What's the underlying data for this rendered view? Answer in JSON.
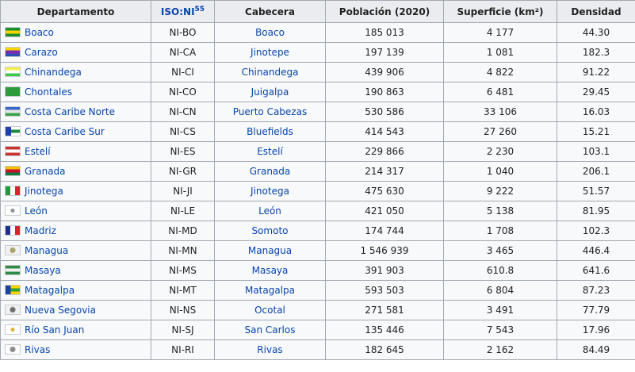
{
  "headers": {
    "departamento": "Departamento",
    "iso": "ISO:NI",
    "iso_ref": "55",
    "cabecera": "Cabecera",
    "poblacion": "Población (2020)",
    "superficie": "Superficie (km²)",
    "densidad": "Densidad"
  },
  "rows": [
    {
      "flag": "boaco-flag-icon",
      "name": "Boaco",
      "iso": "NI-BO",
      "cabecera": "Boaco",
      "poblacion": "185 013",
      "superficie": "4 177",
      "densidad": "44.30",
      "flag_bg": "linear-gradient(to bottom,#1a8f2e 0 33%,#f5d400 33% 66%,#1a8f2e 66%)"
    },
    {
      "flag": "carazo-flag-icon",
      "name": "Carazo",
      "iso": "NI-CA",
      "cabecera": "Jinotepe",
      "poblacion": "197 139",
      "superficie": "1 081",
      "densidad": "182.3",
      "flag_bg": "linear-gradient(to bottom,#ffd500 0 33%,#7b2bb0 33% 66%,#2f4fb5 66%)"
    },
    {
      "flag": "chinandega-flag-icon",
      "name": "Chinandega",
      "iso": "NI-CI",
      "cabecera": "Chinandega",
      "poblacion": "439 906",
      "superficie": "4 822",
      "densidad": "91.22",
      "flag_bg": "linear-gradient(to bottom,#f7ef4b 0 33%,#ffffff 33% 66%,#3fc74a 66%)"
    },
    {
      "flag": "chontales-flag-icon",
      "name": "Chontales",
      "iso": "NI-CO",
      "cabecera": "Juigalpa",
      "poblacion": "190 863",
      "superficie": "6 481",
      "densidad": "29.45",
      "flag_bg": "#2f9a3c"
    },
    {
      "flag": "costa-caribe-norte-flag-icon",
      "name": "Costa Caribe Norte",
      "iso": "NI-CN",
      "cabecera": "Puerto Cabezas",
      "poblacion": "530 586",
      "superficie": "33 106",
      "densidad": "16.03",
      "flag_bg": "linear-gradient(to bottom,#3a67c7 0 33%,#e6e6e6 33% 66%,#3aa34a 66%)"
    },
    {
      "flag": "costa-caribe-sur-flag-icon",
      "name": "Costa Caribe Sur",
      "iso": "NI-CS",
      "cabecera": "Bluefields",
      "poblacion": "414 543",
      "superficie": "27 260",
      "densidad": "15.21",
      "flag_bg": "linear-gradient(to right,#1d3fa8 0 40%,transparent 40%),linear-gradient(to bottom,#ffffff 0 33%,#1e8a3a 33% 66%,#ffffff 66%)"
    },
    {
      "flag": "esteli-flag-icon",
      "name": "Estelí",
      "iso": "NI-ES",
      "cabecera": "Estelí",
      "poblacion": "229 866",
      "superficie": "2 230",
      "densidad": "103.1",
      "flag_bg": "linear-gradient(to bottom,#c9342f 0 33%,#ffffff 33% 66%,#c9342f 66%)"
    },
    {
      "flag": "granada-flag-icon",
      "name": "Granada",
      "iso": "NI-GR",
      "cabecera": "Granada",
      "poblacion": "214 317",
      "superficie": "1 040",
      "densidad": "206.1",
      "flag_bg": "linear-gradient(to bottom,#f2c200 0 33%,#c8102e 33% 66%,#0c7a3e 66%)"
    },
    {
      "flag": "jinotega-flag-icon",
      "name": "Jinotega",
      "iso": "NI-JI",
      "cabecera": "Jinotega",
      "poblacion": "475 630",
      "superficie": "9 222",
      "densidad": "51.57",
      "flag_bg": "linear-gradient(to right,#1c9b3a 0 33%,#ffffff 33% 66%,#d6252b 66%)"
    },
    {
      "flag": "leon-flag-icon",
      "name": "León",
      "iso": "NI-LE",
      "cabecera": "León",
      "poblacion": "421 050",
      "superficie": "5 138",
      "densidad": "81.95",
      "flag_bg": "radial-gradient(circle at center,#8a8f99 0 2px,#ffffff 3px)"
    },
    {
      "flag": "madriz-flag-icon",
      "name": "Madriz",
      "iso": "NI-MD",
      "cabecera": "Somoto",
      "poblacion": "174 744",
      "superficie": "1 708",
      "densidad": "102.3",
      "flag_bg": "linear-gradient(to right,#1d2f8f 0 33%,#ffffff 33% 66%,#d6252b 66%)"
    },
    {
      "flag": "managua-flag-icon",
      "name": "Managua",
      "iso": "NI-MN",
      "cabecera": "Managua",
      "poblacion": "1 546 939",
      "superficie": "3 465",
      "densidad": "446.4",
      "flag_bg": "radial-gradient(circle at center,#a9a26a 0 3px,#f2f2f2 4px)"
    },
    {
      "flag": "masaya-flag-icon",
      "name": "Masaya",
      "iso": "NI-MS",
      "cabecera": "Masaya",
      "poblacion": "391 903",
      "superficie": "610.8",
      "densidad": "641.6",
      "flag_bg": "linear-gradient(to bottom,#2e8b45 0 33%,#f2f2f2 33% 66%,#2e8b45 66%)"
    },
    {
      "flag": "matagalpa-flag-icon",
      "name": "Matagalpa",
      "iso": "NI-MT",
      "cabecera": "Matagalpa",
      "poblacion": "593 503",
      "superficie": "6 804",
      "densidad": "87.23",
      "flag_bg": "linear-gradient(to right,#1d3fa8 0 35%,transparent 35%),linear-gradient(to bottom,#f5d400 0 33%,#2e9e3f 33% 66%,#f5d400 66%)"
    },
    {
      "flag": "nueva-segovia-flag-icon",
      "name": "Nueva Segovia",
      "iso": "NI-NS",
      "cabecera": "Ocotal",
      "poblacion": "271 581",
      "superficie": "3 491",
      "densidad": "77.79",
      "flag_bg": "radial-gradient(circle at center,#6f6f6f 0 3px,#f2f2f2 4px)"
    },
    {
      "flag": "rio-san-juan-flag-icon",
      "name": "Río San Juan",
      "iso": "NI-SJ",
      "cabecera": "San Carlos",
      "poblacion": "135 446",
      "superficie": "7 543",
      "densidad": "17.96",
      "flag_bg": "radial-gradient(circle at center,#e1b23a 0 2px,#ffffff 3px)"
    },
    {
      "flag": "rivas-flag-icon",
      "name": "Rivas",
      "iso": "NI-RI",
      "cabecera": "Rivas",
      "poblacion": "182 645",
      "superficie": "2 162",
      "densidad": "84.49",
      "flag_bg": "radial-gradient(circle at center,#8c8c8c 0 3px,#ffffff 4px)"
    }
  ]
}
